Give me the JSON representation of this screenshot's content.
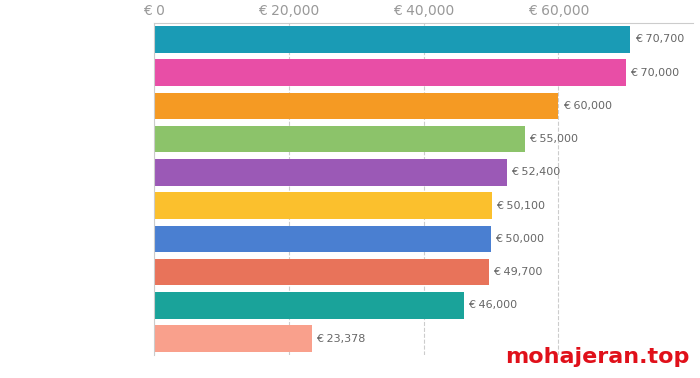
{
  "chart_data": {
    "type": "bar",
    "orientation": "horizontal",
    "categories": [
      null,
      null,
      null,
      null,
      null,
      null,
      null,
      null,
      null,
      null
    ],
    "values": [
      70700,
      70000,
      60000,
      55000,
      52400,
      50100,
      50000,
      49700,
      46000,
      23378
    ],
    "value_labels": [
      "€ 70,700",
      "€ 70,000",
      "€ 60,000",
      "€ 55,000",
      "€ 52,400",
      "€ 50,100",
      "€ 50,000",
      "€ 49,700",
      "€ 46,000",
      "€ 23,378"
    ],
    "colors": [
      "#1a9bb5",
      "#e84ea6",
      "#f59a23",
      "#8cc36a",
      "#9b59b6",
      "#fbc02d",
      "#4a7fd1",
      "#e8735a",
      "#1aa39a",
      "#f9a08c"
    ],
    "xlim": [
      0,
      80000
    ],
    "xticks": [
      {
        "value": 0,
        "label": "€ 0"
      },
      {
        "value": 20000,
        "label": "€ 20,000"
      },
      {
        "value": 40000,
        "label": "€ 40,000"
      },
      {
        "value": 60000,
        "label": "€ 60,000"
      }
    ],
    "grid": true,
    "data_labels": true,
    "tick_labels": "x",
    "annotation": "mohajeran.top"
  }
}
